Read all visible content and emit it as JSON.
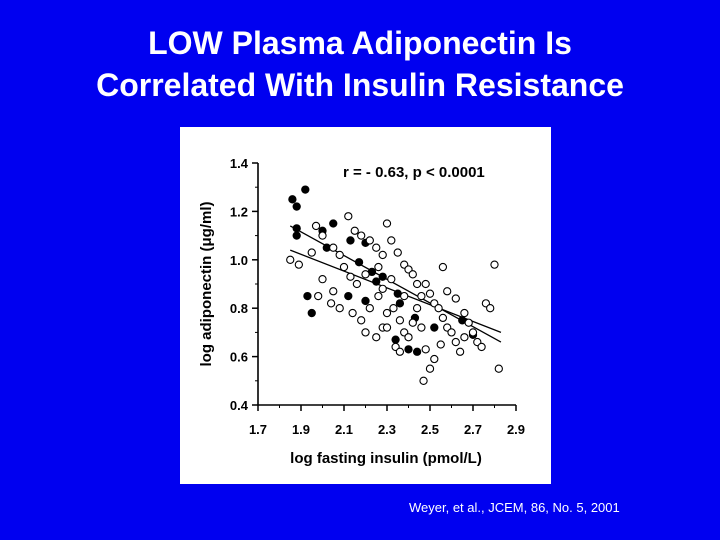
{
  "slide": {
    "title_line1": "LOW Plasma Adiponectin Is",
    "title_line2": "Correlated With Insulin Resistance",
    "citation": "Weyer, et al., JCEM, 86, No. 5, 2001",
    "background_color": "#0000f0",
    "text_color": "#ffffff"
  },
  "chart_data": {
    "type": "scatter",
    "annotation": "r = - 0.63, p < 0.0001",
    "xlabel": "log fasting insulin (pmol/L)",
    "ylabel": "log adiponectin (μg/ml)",
    "xlim": [
      1.7,
      2.9
    ],
    "ylim": [
      0.4,
      1.4
    ],
    "x_ticks": [
      "1.7",
      "1.9",
      "2.1",
      "2.3",
      "2.5",
      "2.7",
      "2.9"
    ],
    "y_ticks": [
      "1.4",
      "1.2",
      "1.0",
      "0.8",
      "0.6",
      "0.4"
    ],
    "grid": false,
    "series": [
      {
        "marker": "filled-circle",
        "color": "#000000",
        "points": [
          [
            1.86,
            1.25
          ],
          [
            1.92,
            1.29
          ],
          [
            1.88,
            1.22
          ],
          [
            1.88,
            1.13
          ],
          [
            2.05,
            1.15
          ],
          [
            2.0,
            1.12
          ],
          [
            2.02,
            1.05
          ],
          [
            1.88,
            1.1
          ],
          [
            2.13,
            1.08
          ],
          [
            2.17,
            0.99
          ],
          [
            2.2,
            1.07
          ],
          [
            2.23,
            0.95
          ],
          [
            2.28,
            0.93
          ],
          [
            2.12,
            0.85
          ],
          [
            2.2,
            0.83
          ],
          [
            2.36,
            0.82
          ],
          [
            2.43,
            0.76
          ],
          [
            2.52,
            0.72
          ],
          [
            2.34,
            0.67
          ],
          [
            2.4,
            0.63
          ],
          [
            2.44,
            0.62
          ],
          [
            2.7,
            0.69
          ],
          [
            2.65,
            0.75
          ],
          [
            2.25,
            0.91
          ],
          [
            1.93,
            0.85
          ],
          [
            1.95,
            0.78
          ],
          [
            2.35,
            0.86
          ]
        ]
      },
      {
        "marker": "open-circle",
        "color": "#000000",
        "points": [
          [
            1.85,
            1.0
          ],
          [
            1.89,
            0.98
          ],
          [
            1.95,
            1.03
          ],
          [
            1.97,
            1.14
          ],
          [
            2.0,
            1.1
          ],
          [
            2.05,
            1.05
          ],
          [
            2.08,
            1.02
          ],
          [
            2.12,
            1.18
          ],
          [
            2.15,
            1.12
          ],
          [
            2.18,
            1.1
          ],
          [
            2.22,
            1.08
          ],
          [
            2.25,
            1.05
          ],
          [
            2.28,
            1.02
          ],
          [
            2.3,
            1.15
          ],
          [
            2.32,
            1.08
          ],
          [
            2.35,
            1.03
          ],
          [
            2.38,
            0.98
          ],
          [
            2.4,
            0.96
          ],
          [
            2.1,
            0.97
          ],
          [
            2.13,
            0.93
          ],
          [
            2.16,
            0.9
          ],
          [
            2.05,
            0.87
          ],
          [
            1.98,
            0.85
          ],
          [
            2.08,
            0.8
          ],
          [
            2.14,
            0.78
          ],
          [
            2.18,
            0.75
          ],
          [
            2.2,
            0.7
          ],
          [
            2.25,
            0.68
          ],
          [
            2.28,
            0.72
          ],
          [
            2.3,
            0.78
          ],
          [
            2.33,
            0.8
          ],
          [
            2.36,
            0.75
          ],
          [
            2.38,
            0.7
          ],
          [
            2.4,
            0.68
          ],
          [
            2.42,
            0.74
          ],
          [
            2.44,
            0.8
          ],
          [
            2.46,
            0.85
          ],
          [
            2.48,
            0.9
          ],
          [
            2.5,
            0.86
          ],
          [
            2.52,
            0.82
          ],
          [
            2.54,
            0.8
          ],
          [
            2.56,
            0.76
          ],
          [
            2.58,
            0.72
          ],
          [
            2.6,
            0.7
          ],
          [
            2.62,
            0.66
          ],
          [
            2.64,
            0.62
          ],
          [
            2.66,
            0.78
          ],
          [
            2.68,
            0.74
          ],
          [
            2.7,
            0.7
          ],
          [
            2.72,
            0.66
          ],
          [
            2.74,
            0.64
          ],
          [
            2.76,
            0.82
          ],
          [
            2.78,
            0.8
          ],
          [
            2.8,
            0.98
          ],
          [
            2.82,
            0.55
          ],
          [
            2.56,
            0.97
          ],
          [
            2.48,
            0.63
          ],
          [
            2.52,
            0.59
          ],
          [
            2.5,
            0.55
          ],
          [
            2.47,
            0.5
          ],
          [
            2.28,
            0.88
          ],
          [
            2.32,
            0.92
          ],
          [
            2.42,
            0.94
          ],
          [
            2.58,
            0.87
          ],
          [
            2.62,
            0.84
          ],
          [
            2.22,
            0.8
          ],
          [
            2.26,
            0.85
          ],
          [
            2.34,
            0.64
          ],
          [
            2.36,
            0.62
          ],
          [
            2.2,
            0.94
          ],
          [
            2.26,
            0.97
          ],
          [
            2.44,
            0.9
          ],
          [
            2.3,
            0.72
          ],
          [
            2.55,
            0.65
          ],
          [
            2.66,
            0.68
          ],
          [
            2.04,
            0.82
          ],
          [
            2.0,
            0.92
          ],
          [
            2.38,
            0.85
          ],
          [
            2.46,
            0.72
          ]
        ]
      }
    ],
    "fit_lines": [
      {
        "from": [
          1.85,
          1.14
        ],
        "to": [
          2.83,
          0.66
        ]
      },
      {
        "from": [
          1.85,
          1.04
        ],
        "to": [
          2.83,
          0.7
        ]
      }
    ]
  }
}
